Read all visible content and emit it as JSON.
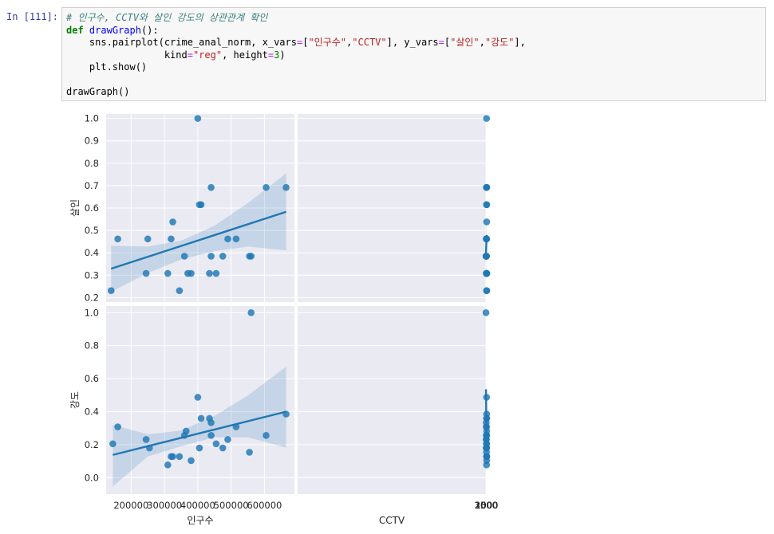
{
  "cell": {
    "prompt": "In [111]:",
    "lines": [
      [
        {
          "t": "# 인구수, CCTV와 살인 강도의 상관관계 확인",
          "c": "c-com"
        }
      ],
      [
        {
          "t": "def",
          "c": "c-kw"
        },
        {
          "t": " "
        },
        {
          "t": "drawGraph",
          "c": "c-fn"
        },
        {
          "t": "():"
        }
      ],
      [
        {
          "t": "    sns.pairplot(crime_anal_norm, x_vars"
        },
        {
          "t": "=",
          "c": "c-op"
        },
        {
          "t": "["
        },
        {
          "t": "\"인구수\"",
          "c": "c-str"
        },
        {
          "t": ","
        },
        {
          "t": "\"CCTV\"",
          "c": "c-str"
        },
        {
          "t": "], y_vars"
        },
        {
          "t": "=",
          "c": "c-op"
        },
        {
          "t": "["
        },
        {
          "t": "\"살인\"",
          "c": "c-str"
        },
        {
          "t": ","
        },
        {
          "t": "\"강도\"",
          "c": "c-str"
        },
        {
          "t": "],"
        }
      ],
      [
        {
          "t": "                 kind"
        },
        {
          "t": "=",
          "c": "c-op"
        },
        {
          "t": "\"reg\"",
          "c": "c-str"
        },
        {
          "t": ", height"
        },
        {
          "t": "=",
          "c": "c-op"
        },
        {
          "t": "3",
          "c": "c-num"
        },
        {
          "t": ")"
        }
      ],
      [
        {
          "t": "    plt.show()"
        }
      ],
      [
        {
          "t": ""
        }
      ],
      [
        {
          "t": "drawGraph()"
        }
      ]
    ]
  },
  "colors": {
    "point": "#1f77b4",
    "line": "#1f77b4",
    "band": "#1f77b4",
    "panel_bg": "#eaeaf2",
    "grid": "#ffffff",
    "text": "#262626"
  },
  "chart_data": {
    "type": "scatter",
    "subtype": "pairplot-regression",
    "x_vars": [
      "인구수",
      "CCTV"
    ],
    "y_vars": [
      "살인",
      "강도"
    ],
    "xlim": {
      "인구수": [
        125000,
        690000
      ],
      "CCTV": [
        650000,
        3400
      ]
    },
    "ylim": {
      "살인": [
        0.18,
        1.02
      ],
      "강도": [
        -0.1,
        1.04
      ]
    },
    "xticks": {
      "인구수": [
        {
          "v": 200000,
          "label": "200000"
        },
        {
          "v": 300000,
          "label": "300000"
        },
        {
          "v": 400000,
          "label": "400000"
        },
        {
          "v": 500000,
          "label": "500000"
        },
        {
          "v": 600000,
          "label": "600000"
        }
      ],
      "CCTV": [
        {
          "v": 1000,
          "label": "1000"
        },
        {
          "v": 1500,
          "label": "1500"
        },
        {
          "v": 2000,
          "label": "2000"
        },
        {
          "v": 2500,
          "label": "2500"
        },
        {
          "v": 3000,
          "label": "3000"
        }
      ]
    },
    "yticks": {
      "살인": [
        {
          "v": 0.2,
          "label": "0.2"
        },
        {
          "v": 0.3,
          "label": "0.3"
        },
        {
          "v": 0.4,
          "label": "0.4"
        },
        {
          "v": 0.5,
          "label": "0.5"
        },
        {
          "v": 0.6,
          "label": "0.6"
        },
        {
          "v": 0.7,
          "label": "0.7"
        },
        {
          "v": 0.8,
          "label": "0.8"
        },
        {
          "v": 0.9,
          "label": "0.9"
        },
        {
          "v": 1.0,
          "label": "1.0"
        }
      ],
      "강도": [
        {
          "v": 0.0,
          "label": "0.0"
        },
        {
          "v": 0.2,
          "label": "0.2"
        },
        {
          "v": 0.4,
          "label": "0.4"
        },
        {
          "v": 0.6,
          "label": "0.6"
        },
        {
          "v": 0.8,
          "label": "0.8"
        },
        {
          "v": 1.0,
          "label": "1.0"
        }
      ]
    },
    "panels": [
      {
        "x": "인구수",
        "y": "살인",
        "points": [
          [
            140000,
            0.231
          ],
          [
            160000,
            0.462
          ],
          [
            245000,
            0.308
          ],
          [
            250000,
            0.462
          ],
          [
            310000,
            0.308
          ],
          [
            320000,
            0.462
          ],
          [
            325000,
            0.538
          ],
          [
            345000,
            0.231
          ],
          [
            360000,
            0.385
          ],
          [
            370000,
            0.308
          ],
          [
            380000,
            0.308
          ],
          [
            400000,
            1.0
          ],
          [
            405000,
            0.615
          ],
          [
            410000,
            0.615
          ],
          [
            435000,
            0.308
          ],
          [
            440000,
            0.692
          ],
          [
            440000,
            0.385
          ],
          [
            455000,
            0.308
          ],
          [
            475000,
            0.385
          ],
          [
            490000,
            0.462
          ],
          [
            515000,
            0.462
          ],
          [
            555000,
            0.385
          ],
          [
            560000,
            0.385
          ],
          [
            605000,
            0.692
          ],
          [
            665000,
            0.692
          ]
        ],
        "fit": [
          [
            140000,
            0.329
          ],
          [
            665000,
            0.583
          ]
        ],
        "band_upper": [
          [
            140000,
            0.432
          ],
          [
            250000,
            0.428
          ],
          [
            350000,
            0.454
          ],
          [
            450000,
            0.521
          ],
          [
            550000,
            0.622
          ],
          [
            665000,
            0.755
          ]
        ],
        "band_lower": [
          [
            140000,
            0.226
          ],
          [
            250000,
            0.31
          ],
          [
            350000,
            0.37
          ],
          [
            450000,
            0.408
          ],
          [
            550000,
            0.428
          ],
          [
            665000,
            0.411
          ]
        ]
      },
      {
        "x": "CCTV",
        "y": "살인",
        "points": [
          [
            800,
            0.538
          ],
          [
            810,
            0.231
          ],
          [
            850,
            0.308
          ],
          [
            880,
            0.692
          ],
          [
            900,
            0.615
          ],
          [
            960,
            0.308
          ],
          [
            1000,
            0.308
          ],
          [
            1010,
            0.231
          ],
          [
            1020,
            0.308
          ],
          [
            1070,
            0.692
          ],
          [
            1260,
            0.462
          ],
          [
            1270,
            1.0
          ],
          [
            1290,
            0.615
          ],
          [
            1330,
            0.308
          ],
          [
            1350,
            0.462
          ],
          [
            1550,
            0.385
          ],
          [
            1610,
            0.462
          ],
          [
            1650,
            0.308
          ],
          [
            1860,
            0.692
          ],
          [
            1870,
            0.385
          ],
          [
            2090,
            0.308
          ],
          [
            2110,
            0.462
          ],
          [
            2120,
            0.462
          ],
          [
            2300,
            0.385
          ],
          [
            2480,
            0.385
          ],
          [
            3240,
            0.385
          ]
        ],
        "fit": [
          [
            800,
            0.479
          ],
          [
            3240,
            0.399
          ]
        ],
        "band_upper": [
          [
            800,
            0.555
          ],
          [
            1300,
            0.51
          ],
          [
            1800,
            0.493
          ],
          [
            2300,
            0.51
          ],
          [
            2800,
            0.53
          ],
          [
            3240,
            0.555
          ]
        ],
        "band_lower": [
          [
            800,
            0.401
          ],
          [
            1300,
            0.408
          ],
          [
            1800,
            0.394
          ],
          [
            2300,
            0.354
          ],
          [
            2800,
            0.3
          ],
          [
            3240,
            0.244
          ]
        ]
      },
      {
        "x": "인구수",
        "y": "강도",
        "points": [
          [
            145000,
            0.205
          ],
          [
            160000,
            0.308
          ],
          [
            245000,
            0.231
          ],
          [
            255000,
            0.18
          ],
          [
            310000,
            0.077
          ],
          [
            320000,
            0.128
          ],
          [
            325000,
            0.128
          ],
          [
            345000,
            0.128
          ],
          [
            360000,
            0.256
          ],
          [
            365000,
            0.282
          ],
          [
            380000,
            0.103
          ],
          [
            400000,
            0.487
          ],
          [
            405000,
            0.18
          ],
          [
            410000,
            0.359
          ],
          [
            435000,
            0.359
          ],
          [
            440000,
            0.333
          ],
          [
            440000,
            0.256
          ],
          [
            455000,
            0.205
          ],
          [
            475000,
            0.18
          ],
          [
            490000,
            0.231
          ],
          [
            515000,
            0.308
          ],
          [
            555000,
            0.154
          ],
          [
            560000,
            1.0
          ],
          [
            605000,
            0.256
          ],
          [
            665000,
            0.385
          ]
        ],
        "fit": [
          [
            145000,
            0.138
          ],
          [
            665000,
            0.4
          ]
        ],
        "band_upper": [
          [
            145000,
            0.32
          ],
          [
            250000,
            0.262
          ],
          [
            350000,
            0.285
          ],
          [
            450000,
            0.374
          ],
          [
            550000,
            0.498
          ],
          [
            665000,
            0.673
          ]
        ],
        "band_lower": [
          [
            145000,
            -0.054
          ],
          [
            250000,
            0.128
          ],
          [
            350000,
            0.19
          ],
          [
            450000,
            0.245
          ],
          [
            550000,
            0.245
          ],
          [
            665000,
            0.182
          ]
        ]
      },
      {
        "x": "CCTV",
        "y": "강도",
        "points": [
          [
            800,
            0.128
          ],
          [
            810,
            0.128
          ],
          [
            850,
            0.282
          ],
          [
            880,
            0.256
          ],
          [
            900,
            0.359
          ],
          [
            960,
            0.103
          ],
          [
            1000,
            0.359
          ],
          [
            1010,
            0.205
          ],
          [
            1070,
            0.385
          ],
          [
            1260,
            0.128
          ],
          [
            1270,
            0.487
          ],
          [
            1290,
            0.18
          ],
          [
            1330,
            0.077
          ],
          [
            1350,
            0.18
          ],
          [
            1550,
            0.154
          ],
          [
            1610,
            0.308
          ],
          [
            1650,
            0.205
          ],
          [
            1860,
            0.256
          ],
          [
            1870,
            0.256
          ],
          [
            2090,
            0.231
          ],
          [
            2110,
            0.308
          ],
          [
            2120,
            0.231
          ],
          [
            2300,
            0.333
          ],
          [
            2480,
            0.18
          ],
          [
            3240,
            1.0
          ]
        ],
        "fit": [
          [
            800,
            0.16
          ],
          [
            3240,
            0.536
          ]
        ],
        "band_upper": [
          [
            800,
            0.255
          ],
          [
            1300,
            0.268
          ],
          [
            1800,
            0.325
          ],
          [
            2300,
            0.42
          ],
          [
            2800,
            0.53
          ],
          [
            3240,
            0.66
          ]
        ],
        "band_lower": [
          [
            800,
            0.055
          ],
          [
            1300,
            0.14
          ],
          [
            1800,
            0.215
          ],
          [
            2300,
            0.265
          ],
          [
            2800,
            0.3
          ],
          [
            3240,
            0.34
          ]
        ]
      }
    ]
  }
}
